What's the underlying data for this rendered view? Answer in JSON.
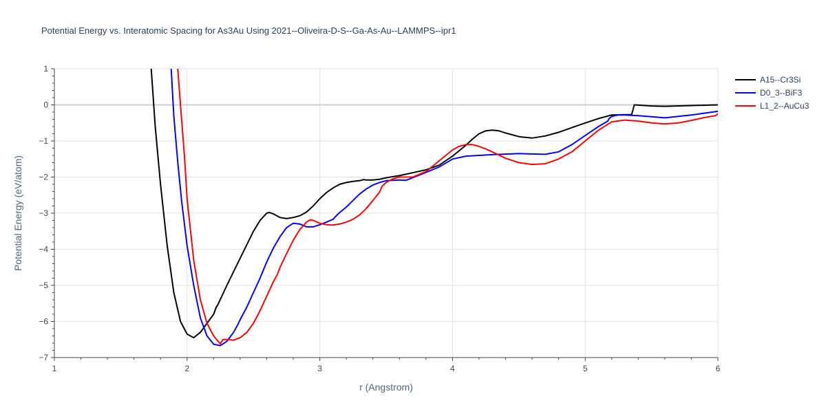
{
  "chart_data": {
    "type": "line",
    "title": "Potential Energy vs. Interatomic Spacing for As3Au Using 2021--Oliveira-D-S--Ga-As-Au--LAMMPS--ipr1",
    "xlabel": "r (Angstrom)",
    "ylabel": "Potential Energy (eV/atom)",
    "xlim": [
      1,
      6
    ],
    "ylim": [
      -7,
      1
    ],
    "xticks": [
      1,
      2,
      3,
      4,
      5,
      6
    ],
    "xtick_labels": [
      "1",
      "2",
      "3",
      "4",
      "5",
      "6"
    ],
    "yticks": [
      1,
      0,
      -1,
      -2,
      -3,
      -4,
      -5,
      -6,
      -7
    ],
    "ytick_labels": [
      "1",
      "0",
      "−1",
      "−2",
      "−3",
      "−4",
      "−5",
      "−6",
      "−7"
    ],
    "grid": true,
    "legend_position": "top-right",
    "series": [
      {
        "name": "A15--Cr3Si",
        "color": "#000000",
        "x": [
          1.73,
          1.76,
          1.8,
          1.85,
          1.9,
          1.95,
          2.0,
          2.05,
          2.1,
          2.15,
          2.2,
          2.22,
          2.23,
          2.3,
          2.4,
          2.5,
          2.55,
          2.6,
          2.62,
          2.65,
          2.7,
          2.75,
          2.8,
          2.85,
          2.9,
          2.95,
          3.0,
          3.05,
          3.1,
          3.15,
          3.2,
          3.25,
          3.3,
          3.33,
          3.35,
          3.4,
          3.45,
          3.5,
          3.6,
          3.7,
          3.8,
          3.9,
          4.0,
          4.1,
          4.15,
          4.2,
          4.25,
          4.3,
          4.35,
          4.4,
          4.5,
          4.6,
          4.7,
          4.8,
          4.9,
          5.0,
          5.1,
          5.2,
          5.3,
          5.35,
          5.37,
          5.5,
          5.6,
          5.8,
          6.0
        ],
        "y": [
          1.0,
          -0.6,
          -2.2,
          -3.9,
          -5.2,
          -6.0,
          -6.35,
          -6.45,
          -6.3,
          -6.05,
          -5.8,
          -5.6,
          -5.55,
          -5.0,
          -4.25,
          -3.5,
          -3.2,
          -3.0,
          -2.98,
          -3.02,
          -3.12,
          -3.15,
          -3.12,
          -3.07,
          -2.97,
          -2.8,
          -2.6,
          -2.43,
          -2.3,
          -2.2,
          -2.15,
          -2.12,
          -2.1,
          -2.07,
          -2.08,
          -2.08,
          -2.06,
          -2.02,
          -1.96,
          -1.88,
          -1.8,
          -1.67,
          -1.42,
          -1.12,
          -0.95,
          -0.8,
          -0.72,
          -0.7,
          -0.72,
          -0.78,
          -0.88,
          -0.92,
          -0.86,
          -0.76,
          -0.63,
          -0.5,
          -0.38,
          -0.28,
          -0.27,
          -0.27,
          0.0,
          -0.03,
          -0.04,
          -0.02,
          0.0
        ]
      },
      {
        "name": "D0_3--BiF3",
        "color": "#0000ff",
        "x": [
          1.88,
          1.9,
          1.93,
          1.96,
          2.0,
          2.05,
          2.1,
          2.15,
          2.2,
          2.25,
          2.3,
          2.35,
          2.38,
          2.4,
          2.45,
          2.5,
          2.55,
          2.6,
          2.65,
          2.7,
          2.75,
          2.8,
          2.85,
          2.9,
          2.95,
          3.0,
          3.05,
          3.1,
          3.13,
          3.15,
          3.2,
          3.25,
          3.3,
          3.35,
          3.4,
          3.45,
          3.5,
          3.6,
          3.65,
          3.7,
          3.8,
          3.9,
          4.0,
          4.1,
          4.2,
          4.3,
          4.5,
          4.7,
          4.8,
          4.9,
          5.0,
          5.1,
          5.17,
          5.18,
          5.2,
          5.25,
          5.3,
          5.4,
          5.5,
          5.6,
          5.8,
          6.0
        ],
        "y": [
          1.0,
          -0.3,
          -1.6,
          -2.7,
          -3.9,
          -5.0,
          -5.9,
          -6.4,
          -6.63,
          -6.67,
          -6.55,
          -6.3,
          -6.1,
          -5.95,
          -5.6,
          -5.2,
          -4.8,
          -4.35,
          -3.97,
          -3.65,
          -3.4,
          -3.28,
          -3.3,
          -3.38,
          -3.38,
          -3.32,
          -3.25,
          -3.17,
          -3.05,
          -2.98,
          -2.83,
          -2.65,
          -2.47,
          -2.33,
          -2.22,
          -2.15,
          -2.1,
          -2.08,
          -2.09,
          -2.02,
          -1.87,
          -1.72,
          -1.5,
          -1.42,
          -1.4,
          -1.38,
          -1.35,
          -1.37,
          -1.3,
          -1.1,
          -0.85,
          -0.6,
          -0.45,
          -0.38,
          -0.32,
          -0.28,
          -0.28,
          -0.3,
          -0.33,
          -0.36,
          -0.28,
          -0.18
        ]
      },
      {
        "name": "L1_2--AuCu3",
        "color": "#ff0000",
        "x": [
          1.93,
          1.95,
          1.98,
          2.0,
          2.05,
          2.1,
          2.15,
          2.2,
          2.25,
          2.27,
          2.3,
          2.35,
          2.4,
          2.45,
          2.5,
          2.55,
          2.6,
          2.65,
          2.68,
          2.7,
          2.75,
          2.8,
          2.85,
          2.9,
          2.93,
          2.95,
          3.0,
          3.05,
          3.1,
          3.15,
          3.2,
          3.25,
          3.3,
          3.35,
          3.4,
          3.45,
          3.47,
          3.5,
          3.55,
          3.6,
          3.7,
          3.8,
          3.9,
          4.0,
          4.05,
          4.1,
          4.15,
          4.2,
          4.25,
          4.3,
          4.4,
          4.5,
          4.6,
          4.7,
          4.8,
          4.9,
          5.0,
          5.1,
          5.2,
          5.3,
          5.4,
          5.5,
          5.6,
          5.7,
          5.8,
          5.9,
          5.98,
          6.0
        ],
        "y": [
          1.0,
          0.0,
          -1.4,
          -2.6,
          -4.3,
          -5.4,
          -6.05,
          -6.4,
          -6.62,
          -6.5,
          -6.5,
          -6.52,
          -6.45,
          -6.3,
          -6.05,
          -5.7,
          -5.3,
          -4.9,
          -4.7,
          -4.5,
          -4.12,
          -3.75,
          -3.45,
          -3.25,
          -3.18,
          -3.2,
          -3.28,
          -3.32,
          -3.33,
          -3.3,
          -3.25,
          -3.17,
          -3.05,
          -2.87,
          -2.65,
          -2.42,
          -2.25,
          -2.15,
          -2.05,
          -2.0,
          -2.0,
          -1.85,
          -1.55,
          -1.25,
          -1.15,
          -1.1,
          -1.1,
          -1.15,
          -1.22,
          -1.3,
          -1.48,
          -1.6,
          -1.65,
          -1.63,
          -1.5,
          -1.3,
          -1.0,
          -0.7,
          -0.47,
          -0.42,
          -0.45,
          -0.5,
          -0.53,
          -0.5,
          -0.43,
          -0.35,
          -0.3,
          -0.25
        ]
      }
    ]
  }
}
